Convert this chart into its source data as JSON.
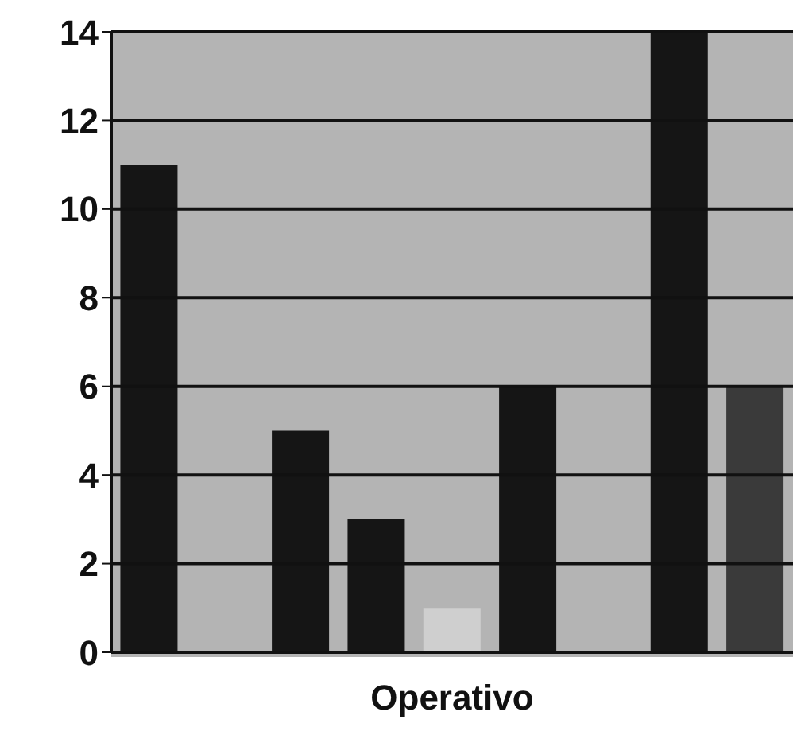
{
  "chart_data": {
    "type": "bar",
    "xlabel": "Operativo",
    "categories": [
      null,
      null,
      null,
      null,
      null,
      null,
      null,
      null,
      null
    ],
    "values": [
      11,
      0,
      5,
      3,
      1,
      6,
      0,
      14,
      6
    ],
    "colors": [
      "#151515",
      "#151515",
      "#151515",
      "#151515",
      "#cfcfcf",
      "#151515",
      "#151515",
      "#151515",
      "#3a3a3a"
    ],
    "ylim": [
      0,
      14
    ],
    "yticks": [
      0,
      2,
      4,
      6,
      8,
      10,
      12,
      14
    ],
    "grid": "y"
  }
}
